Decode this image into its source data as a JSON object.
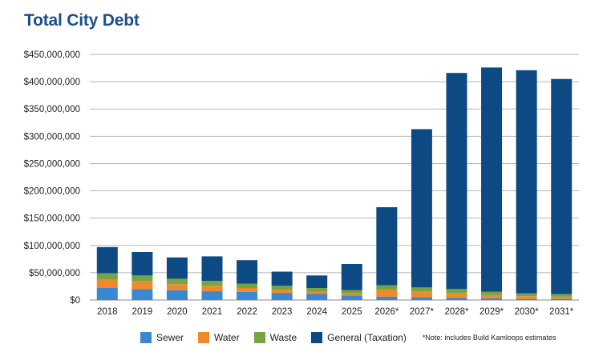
{
  "chart_data": {
    "type": "bar",
    "stacked": true,
    "title": "Total City Debt",
    "xlabel": "",
    "ylabel": "",
    "ylim": [
      0,
      450000000
    ],
    "yticks": [
      0,
      50000000,
      100000000,
      150000000,
      200000000,
      250000000,
      300000000,
      350000000,
      400000000,
      450000000
    ],
    "ytick_labels": [
      "$0",
      "$50,000,000",
      "$100,000,000",
      "$150,000,000",
      "$200,000,000",
      "$250,000,000",
      "$300,000,000",
      "$350,000,000",
      "$400,000,000",
      "$450,000,000"
    ],
    "categories": [
      "2018",
      "2019",
      "2020",
      "2021",
      "2022",
      "2023",
      "2024",
      "2025",
      "2026*",
      "2027*",
      "2028*",
      "2029*",
      "2030*",
      "2031*"
    ],
    "series": [
      {
        "name": "Sewer",
        "color": "#3a87d2",
        "values": [
          22000000,
          20000000,
          18000000,
          16000000,
          15000000,
          13000000,
          11000000,
          8000000,
          6000000,
          5000000,
          4000000,
          3000000,
          2000000,
          2000000
        ]
      },
      {
        "name": "Water",
        "color": "#ee8a2c",
        "values": [
          15000000,
          14000000,
          11000000,
          10000000,
          7000000,
          6000000,
          4000000,
          4000000,
          13000000,
          11000000,
          9000000,
          6000000,
          5000000,
          4000000
        ]
      },
      {
        "name": "Waste",
        "color": "#75a543",
        "values": [
          12000000,
          11000000,
          10000000,
          9000000,
          8000000,
          7000000,
          7000000,
          6000000,
          8000000,
          7000000,
          7000000,
          6000000,
          5000000,
          5000000
        ]
      },
      {
        "name": "General (Taxation)",
        "color": "#0d4a83",
        "values": [
          48000000,
          43000000,
          39000000,
          45000000,
          43000000,
          26000000,
          23000000,
          48000000,
          143000000,
          290000000,
          396000000,
          411000000,
          409000000,
          394000000
        ]
      }
    ],
    "grid": true,
    "legend_position": "bottom",
    "note": "*Note: includes Build Kamloops estimates"
  }
}
